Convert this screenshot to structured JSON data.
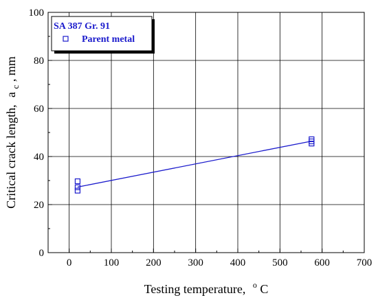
{
  "chart_data": {
    "type": "scatter",
    "xlabel": "Testing temperature,",
    "xlabel_unit": "°C",
    "xlabel_unit_sup": "o",
    "xlabel_unit_main": "C",
    "ylabel_main": "Critical crack length,",
    "ylabel_var": "a",
    "ylabel_sub": "c",
    "ylabel_unit": ", mm",
    "xlim": [
      -50,
      700
    ],
    "ylim": [
      0,
      100
    ],
    "xticks": [
      0,
      100,
      200,
      300,
      400,
      500,
      600,
      700
    ],
    "yticks": [
      0,
      20,
      40,
      60,
      80,
      100
    ],
    "grid": true,
    "legend": {
      "placement": "top-left",
      "title": "SA 387 Gr. 91",
      "entries": [
        "Parent metal"
      ]
    },
    "series": [
      {
        "name": "Parent metal",
        "marker": "square-open",
        "color": "#1a1acc",
        "x": [
          20,
          20,
          20,
          575,
          575,
          575
        ],
        "y": [
          29.7,
          27.2,
          25.8,
          47.2,
          45.4,
          46.3
        ]
      }
    ],
    "fit_line": {
      "color": "#1a1acc",
      "x": [
        20,
        575
      ],
      "y": [
        27.3,
        46.4
      ]
    }
  }
}
